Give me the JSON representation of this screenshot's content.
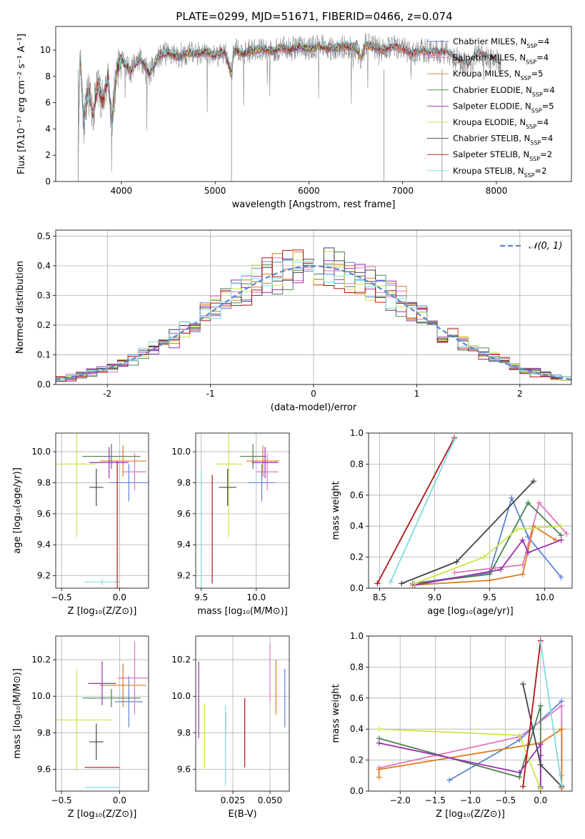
{
  "figure": {
    "title": "PLATE=0299, MJD=51671, FIBERID=0466, z=0.074"
  },
  "chart_data": [
    {
      "id": "spectrum",
      "type": "line",
      "xlabel": "wavelength [Angstrom, rest frame]",
      "ylabel": "Flux [fλ10⁻¹⁷ erg cm⁻² s⁻¹ A⁻¹]",
      "xlim": [
        3300,
        8800
      ],
      "ylim": [
        0,
        11.8
      ],
      "xticks": [
        4000,
        5000,
        6000,
        7000,
        8000
      ],
      "yticks": [
        0,
        2,
        4,
        6,
        8,
        10
      ],
      "observed": {
        "color": "#888888",
        "points": [
          [
            3540,
            3.0
          ],
          [
            3560,
            9.8
          ],
          [
            3600,
            4.5
          ],
          [
            3650,
            6.8
          ],
          [
            3700,
            5.2
          ],
          [
            3750,
            7.4
          ],
          [
            3800,
            6.0
          ],
          [
            3860,
            8.0
          ],
          [
            3900,
            4.2
          ],
          [
            3950,
            8.6
          ],
          [
            4000,
            9.2
          ],
          [
            4100,
            8.4
          ],
          [
            4200,
            9.4
          ],
          [
            4300,
            8.2
          ],
          [
            4400,
            9.6
          ],
          [
            4500,
            9.8
          ],
          [
            4600,
            9.5
          ],
          [
            4700,
            9.8
          ],
          [
            4800,
            9.7
          ],
          [
            4900,
            9.9
          ],
          [
            5000,
            9.6
          ],
          [
            5100,
            9.9
          ],
          [
            5175,
            8.2
          ],
          [
            5200,
            10.0
          ],
          [
            5300,
            9.7
          ],
          [
            5400,
            10.0
          ],
          [
            5500,
            10.1
          ],
          [
            5600,
            9.9
          ],
          [
            5700,
            10.2
          ],
          [
            5800,
            10.0
          ],
          [
            5900,
            10.3
          ],
          [
            6000,
            10.1
          ],
          [
            6100,
            10.3
          ],
          [
            6200,
            10.1
          ],
          [
            6300,
            10.2
          ],
          [
            6400,
            10.3
          ],
          [
            6500,
            10.2
          ],
          [
            6560,
            9.4
          ],
          [
            6600,
            10.4
          ],
          [
            6700,
            10.2
          ],
          [
            6800,
            10.0
          ],
          [
            6900,
            10.3
          ],
          [
            7000,
            10.1
          ],
          [
            7100,
            9.7
          ],
          [
            7200,
            10.0
          ],
          [
            7300,
            9.8
          ],
          [
            7400,
            9.9
          ],
          [
            7500,
            9.7
          ],
          [
            7600,
            9.2
          ],
          [
            7700,
            8.8
          ],
          [
            7800,
            9.8
          ],
          [
            7900,
            9.5
          ],
          [
            8000,
            9.2
          ],
          [
            8050,
            9.0
          ]
        ]
      },
      "series": [
        {
          "name": "Chabrier MILES, N_SSP=4",
          "color": "#5b84d1",
          "xrange": [
            3540,
            7420
          ]
        },
        {
          "name": "Salpeter MILES, N_SSP=4",
          "color": "#e377c2",
          "xrange": [
            3540,
            7420
          ]
        },
        {
          "name": "Kroupa MILES, N_SSP=5",
          "color": "#e07a1f",
          "xrange": [
            3540,
            7420
          ]
        },
        {
          "name": "Chabrier ELODIE, N_SSP=4",
          "color": "#4e8050",
          "xrange": [
            3900,
            6800
          ]
        },
        {
          "name": "Salpeter ELODIE, N_SSP=5",
          "color": "#9b2fae",
          "xrange": [
            3900,
            6800
          ]
        },
        {
          "name": "Kroupa ELODIE, N_SSP=4",
          "color": "#c8e64c",
          "xrange": [
            3900,
            6800
          ]
        },
        {
          "name": "Chabrier STELIB, N_SSP=4",
          "color": "#444444",
          "xrange": [
            3540,
            8050
          ]
        },
        {
          "name": "Salpeter STELIB, N_SSP=2",
          "color": "#b11515",
          "xrange": [
            3540,
            8050
          ]
        },
        {
          "name": "Kroupa STELIB, N_SSP=2",
          "color": "#7fdbe0",
          "xrange": [
            3540,
            8050
          ]
        }
      ]
    },
    {
      "id": "residuals",
      "type": "histogram",
      "xlabel": "(data-model)/error",
      "ylabel": "Normed distribution",
      "xlim": [
        -2.5,
        2.5
      ],
      "ylim": [
        0,
        0.52
      ],
      "xticks": [
        -2,
        -1,
        0,
        1,
        2
      ],
      "yticks": [
        0.0,
        0.1,
        0.2,
        0.3,
        0.4,
        0.5
      ],
      "gaussian_label": "𝒩(0, 1)",
      "gaussian_color": "#5b84d1",
      "bin_width": 0.1,
      "bin_start": -2.5
    },
    {
      "id": "age_vs_Z",
      "type": "errorbar",
      "xlabel": "Z [log₁₀(Z/Z⊙)]",
      "ylabel": "age  [log₁₀(age/yr)]",
      "xlim": [
        -0.55,
        0.25
      ],
      "ylim": [
        9.12,
        10.12
      ],
      "xticks": [
        -0.5,
        0.0
      ],
      "yticks": [
        9.2,
        9.4,
        9.6,
        9.8,
        10.0
      ],
      "points": [
        {
          "color": "#5b84d1",
          "x": 0.08,
          "xerr": 0.17,
          "y": 9.8,
          "yerr": 0.12
        },
        {
          "color": "#e377c2",
          "x": 0.13,
          "xerr": 0.1,
          "y": 9.87,
          "yerr": 0.12
        },
        {
          "color": "#e07a1f",
          "x": 0.03,
          "xerr": 0.2,
          "y": 9.94,
          "yerr": 0.1
        },
        {
          "color": "#4e8050",
          "x": -0.07,
          "xerr": 0.25,
          "y": 9.97,
          "yerr": 0.08
        },
        {
          "color": "#9b2fae",
          "x": -0.09,
          "xerr": 0.17,
          "y": 9.93,
          "yerr": 0.1
        },
        {
          "color": "#c8e64c",
          "x": -0.37,
          "xerr": 0.17,
          "y": 9.92,
          "yerr": 0.47
        },
        {
          "color": "#444444",
          "x": -0.2,
          "xerr": 0.06,
          "y": 9.77,
          "yerr": 0.12
        },
        {
          "color": "#b11515",
          "x": -0.02,
          "xerr": 0.02,
          "y": 9.16,
          "yerr": 0.78
        },
        {
          "color": "#7fdbe0",
          "x": -0.15,
          "xerr": 0.15,
          "y": 9.16,
          "yerr": 0.02
        }
      ]
    },
    {
      "id": "age_vs_mass",
      "type": "errorbar",
      "xlabel": "mass [log₁₀(M/M⊙)]",
      "ylabel": "",
      "xlim": [
        9.45,
        10.3
      ],
      "ylim": [
        9.12,
        10.12
      ],
      "xticks": [
        9.5,
        10.0
      ],
      "yticks": [
        9.2,
        9.4,
        9.6,
        9.8,
        10.0
      ],
      "points": [
        {
          "color": "#5b84d1",
          "x": 10.05,
          "xerr": 0.12,
          "y": 9.8,
          "yerr": 0.12
        },
        {
          "color": "#e377c2",
          "x": 10.1,
          "xerr": 0.1,
          "y": 9.87,
          "yerr": 0.12
        },
        {
          "color": "#e07a1f",
          "x": 10.06,
          "xerr": 0.15,
          "y": 9.94,
          "yerr": 0.1
        },
        {
          "color": "#4e8050",
          "x": 9.97,
          "xerr": 0.12,
          "y": 9.97,
          "yerr": 0.08
        },
        {
          "color": "#9b2fae",
          "x": 10.08,
          "xerr": 0.12,
          "y": 9.93,
          "yerr": 0.1
        },
        {
          "color": "#c8e64c",
          "x": 9.75,
          "xerr": 0.12,
          "y": 9.92,
          "yerr": 0.47
        },
        {
          "color": "#444444",
          "x": 9.74,
          "xerr": 0.08,
          "y": 9.77,
          "yerr": 0.12
        },
        {
          "color": "#b11515",
          "x": 9.6,
          "xerr": 0.0,
          "y": 9.5,
          "yerr": 0.35
        },
        {
          "color": "#7fdbe0",
          "x": 9.5,
          "xerr": 0.0,
          "y": 9.5,
          "yerr": 0.38
        }
      ]
    },
    {
      "id": "weight_vs_age",
      "type": "line",
      "xlabel": "age  [log₁₀(age/yr)]",
      "ylabel": "mass weight",
      "xlim": [
        8.4,
        10.25
      ],
      "ylim": [
        0,
        1.0
      ],
      "xticks": [
        8.5,
        9.0,
        9.5,
        10.0
      ],
      "yticks": [
        0.0,
        0.2,
        0.4,
        0.6,
        0.8,
        1.0
      ],
      "series": [
        {
          "color": "#5b84d1",
          "x": [
            8.8,
            9.5,
            9.7,
            9.85,
            10.15
          ],
          "y": [
            0.03,
            0.1,
            0.58,
            0.33,
            0.07
          ]
        },
        {
          "color": "#e377c2",
          "x": [
            9.18,
            9.55,
            9.8,
            9.95,
            10.2
          ],
          "y": [
            0.1,
            0.13,
            0.15,
            0.55,
            0.35
          ]
        },
        {
          "color": "#e07a1f",
          "x": [
            8.8,
            9.5,
            9.8,
            9.9,
            10.1
          ],
          "y": [
            0.02,
            0.05,
            0.09,
            0.4,
            0.31
          ]
        },
        {
          "color": "#4e8050",
          "x": [
            8.82,
            9.5,
            9.85,
            10.15
          ],
          "y": [
            0.03,
            0.09,
            0.55,
            0.34
          ]
        },
        {
          "color": "#9b2fae",
          "x": [
            8.82,
            9.6,
            9.8,
            9.85,
            10.15
          ],
          "y": [
            0.02,
            0.12,
            0.31,
            0.23,
            0.31
          ]
        },
        {
          "color": "#c8e64c",
          "x": [
            8.82,
            9.45,
            9.75,
            10.15
          ],
          "y": [
            0.03,
            0.2,
            0.38,
            0.4
          ]
        },
        {
          "color": "#444444",
          "x": [
            8.7,
            9.2,
            9.9
          ],
          "y": [
            0.03,
            0.17,
            0.69
          ]
        },
        {
          "color": "#b11515",
          "x": [
            8.48,
            9.18
          ],
          "y": [
            0.03,
            0.97
          ]
        },
        {
          "color": "#7fdbe0",
          "x": [
            8.6,
            9.18
          ],
          "y": [
            0.04,
            0.96
          ]
        }
      ]
    },
    {
      "id": "mass_vs_Z",
      "type": "errorbar",
      "xlabel": "Z [log₁₀(Z/Z⊙)]",
      "ylabel": "mass [log₁₀(M/M⊙)]",
      "xlim": [
        -0.55,
        0.25
      ],
      "ylim": [
        9.48,
        10.33
      ],
      "xticks": [
        -0.5,
        0.0
      ],
      "yticks": [
        9.6,
        9.8,
        10.0,
        10.2
      ],
      "points": [
        {
          "color": "#5b84d1",
          "x": 0.08,
          "xerr": 0.12,
          "y": 9.97,
          "yerr": 0.14
        },
        {
          "color": "#e377c2",
          "x": 0.13,
          "xerr": 0.15,
          "y": 10.1,
          "yerr": 0.2
        },
        {
          "color": "#e07a1f",
          "x": 0.03,
          "xerr": 0.2,
          "y": 10.06,
          "yerr": 0.12
        },
        {
          "color": "#4e8050",
          "x": -0.07,
          "xerr": 0.25,
          "y": 9.99,
          "yerr": 0.05
        },
        {
          "color": "#9b2fae",
          "x": -0.15,
          "xerr": 0.12,
          "y": 10.07,
          "yerr": 0.12
        },
        {
          "color": "#c8e64c",
          "x": -0.37,
          "xerr": 0.3,
          "y": 9.87,
          "yerr": 0.28
        },
        {
          "color": "#444444",
          "x": -0.2,
          "xerr": 0.06,
          "y": 9.75,
          "yerr": 0.1
        },
        {
          "color": "#b11515",
          "x": -0.15,
          "xerr": 0.15,
          "y": 9.61,
          "yerr": 0.0
        },
        {
          "color": "#7fdbe0",
          "x": -0.15,
          "xerr": 0.15,
          "y": 9.5,
          "yerr": 0.0
        }
      ]
    },
    {
      "id": "mass_vs_EBV",
      "type": "errorbar",
      "xlabel": "E(B-V)",
      "ylabel": "",
      "xlim": [
        0.0,
        0.063
      ],
      "ylim": [
        9.48,
        10.33
      ],
      "xticks": [
        0.025,
        0.05
      ],
      "yticks": [
        9.6,
        9.8,
        10.0,
        10.2
      ],
      "points": [
        {
          "color": "#5b84d1",
          "x": 0.06,
          "xerr": 0.0,
          "y": 9.99,
          "yerr": 0.16
        },
        {
          "color": "#e377c2",
          "x": 0.05,
          "xerr": 0.0,
          "y": 10.13,
          "yerr": 0.16
        },
        {
          "color": "#e07a1f",
          "x": 0.054,
          "xerr": 0.0,
          "y": 10.05,
          "yerr": 0.15
        },
        {
          "color": "#4e8050",
          "x": 0.02,
          "xerr": 0.0,
          "y": 9.8,
          "yerr": 0.1
        },
        {
          "color": "#9b2fae",
          "x": 0.002,
          "xerr": 0.0,
          "y": 9.98,
          "yerr": 0.21
        },
        {
          "color": "#c8e64c",
          "x": 0.006,
          "xerr": 0.0,
          "y": 9.78,
          "yerr": 0.18
        },
        {
          "color": "#444444",
          "x": 0.02,
          "xerr": 0.0,
          "y": 9.86,
          "yerr": 0.05
        },
        {
          "color": "#b11515",
          "x": 0.033,
          "xerr": 0.0,
          "y": 9.8,
          "yerr": 0.19
        },
        {
          "color": "#7fdbe0",
          "x": 0.02,
          "xerr": 0.0,
          "y": 9.73,
          "yerr": 0.22
        }
      ]
    },
    {
      "id": "weight_vs_Z",
      "type": "line",
      "xlabel": "Z [log₁₀(Z/Z⊙)]",
      "ylabel": "mass weight",
      "xlim": [
        -2.45,
        0.45
      ],
      "ylim": [
        0,
        1.0
      ],
      "xticks": [
        -2.0,
        -1.5,
        -1.0,
        -0.5,
        0.0
      ],
      "yticks": [
        0.0,
        0.2,
        0.4,
        0.6,
        0.8,
        1.0
      ],
      "series": [
        {
          "color": "#5b84d1",
          "x": [
            -1.3,
            -0.3,
            0.3
          ],
          "y": [
            0.07,
            0.33,
            0.58
          ]
        },
        {
          "color": "#e377c2",
          "x": [
            -2.3,
            -0.3,
            0.3,
            0.3
          ],
          "y": [
            0.15,
            0.35,
            0.55,
            0.1
          ]
        },
        {
          "color": "#e07a1f",
          "x": [
            -2.3,
            -2.3,
            0.0,
            0.3,
            0.3
          ],
          "y": [
            0.09,
            0.14,
            0.31,
            0.4,
            0.02
          ]
        },
        {
          "color": "#4e8050",
          "x": [
            -2.3,
            -0.3,
            0.0,
            0.0
          ],
          "y": [
            0.34,
            0.09,
            0.55,
            0.03
          ]
        },
        {
          "color": "#9b2fae",
          "x": [
            -2.3,
            -0.3,
            0.0,
            0.0,
            0.0
          ],
          "y": [
            0.31,
            0.12,
            0.3,
            0.23,
            0.02
          ]
        },
        {
          "color": "#c8e64c",
          "x": [
            -2.3,
            -0.3,
            0.0
          ],
          "y": [
            0.4,
            0.36,
            0.01
          ]
        },
        {
          "color": "#444444",
          "x": [
            -0.25,
            0.0,
            0.3
          ],
          "y": [
            0.69,
            0.17,
            0.03
          ]
        },
        {
          "color": "#b11515",
          "x": [
            -0.25,
            0.0
          ],
          "y": [
            0.03,
            0.97
          ]
        },
        {
          "color": "#7fdbe0",
          "x": [
            0.0,
            0.3
          ],
          "y": [
            0.96,
            0.04
          ]
        }
      ]
    }
  ]
}
